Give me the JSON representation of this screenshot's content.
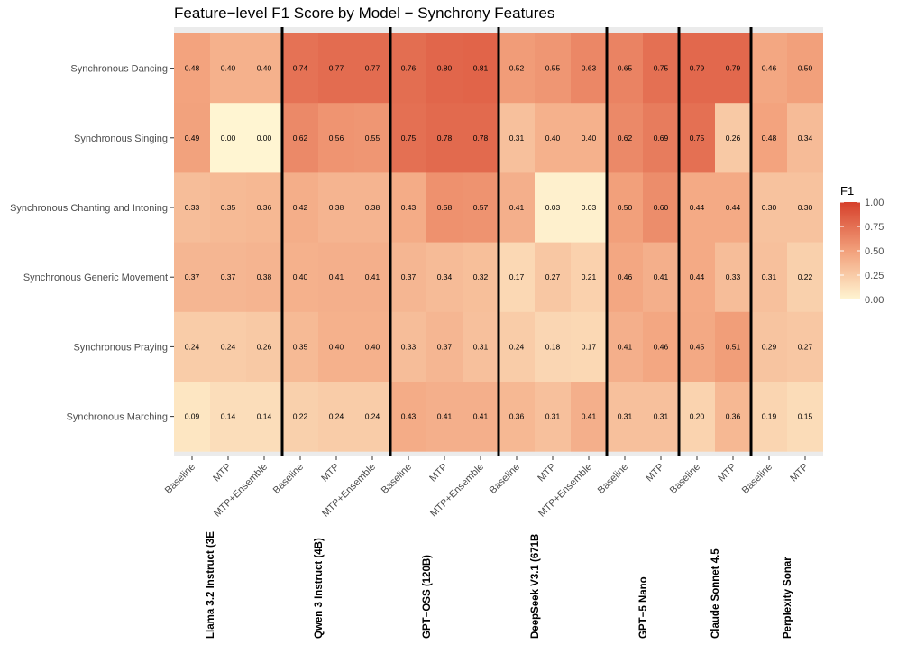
{
  "chart_data": {
    "type": "heatmap",
    "title": "Feature−level F1 Score by Model − Synchrony Features",
    "legend": {
      "title": "F1",
      "ticks": [
        "1.00",
        "0.75",
        "0.50",
        "0.25",
        "0.00"
      ],
      "placement": "right",
      "colors": {
        "low": "#fff5d2",
        "mid": "#f2a07b",
        "high": "#d6402b"
      }
    },
    "rows": [
      "Synchronous Dancing",
      "Synchronous Singing",
      "Synchronous Chanting and Intoning",
      "Synchronous Generic Movement",
      "Synchronous Praying",
      "Synchronous Marching"
    ],
    "models": [
      {
        "name": "Llama 3.2 Instruct (3E",
        "methods": [
          "Baseline",
          "MTP",
          "MTP+Ensemble"
        ]
      },
      {
        "name": "Qwen 3 Instruct (4B)",
        "methods": [
          "Baseline",
          "MTP",
          "MTP+Ensemble"
        ]
      },
      {
        "name": "GPT−OSS (120B)",
        "methods": [
          "Baseline",
          "MTP",
          "MTP+Ensemble"
        ]
      },
      {
        "name": "DeepSeek V3.1 (671B",
        "methods": [
          "Baseline",
          "MTP",
          "MTP+Ensemble"
        ]
      },
      {
        "name": "GPT−5 Nano",
        "methods": [
          "Baseline",
          "MTP"
        ]
      },
      {
        "name": "Claude Sonnet 4.5",
        "methods": [
          "Baseline",
          "MTP"
        ]
      },
      {
        "name": "Perplexity Sonar",
        "methods": [
          "Baseline",
          "MTP"
        ]
      }
    ],
    "values": [
      [
        "0.48",
        "0.40",
        "0.40",
        "0.74",
        "0.77",
        "0.77",
        "0.76",
        "0.80",
        "0.81",
        "0.52",
        "0.55",
        "0.63",
        "0.65",
        "0.75",
        "0.79",
        "0.79",
        "0.46",
        "0.50"
      ],
      [
        "0.49",
        "0.00",
        "0.00",
        "0.62",
        "0.56",
        "0.55",
        "0.75",
        "0.78",
        "0.78",
        "0.31",
        "0.40",
        "0.40",
        "0.62",
        "0.69",
        "0.75",
        "0.26",
        "0.48",
        "0.34"
      ],
      [
        "0.33",
        "0.35",
        "0.36",
        "0.42",
        "0.38",
        "0.38",
        "0.43",
        "0.58",
        "0.57",
        "0.41",
        "0.03",
        "0.03",
        "0.50",
        "0.60",
        "0.44",
        "0.44",
        "0.30",
        "0.30"
      ],
      [
        "0.37",
        "0.37",
        "0.38",
        "0.40",
        "0.41",
        "0.41",
        "0.37",
        "0.34",
        "0.32",
        "0.17",
        "0.27",
        "0.21",
        "0.46",
        "0.41",
        "0.44",
        "0.33",
        "0.31",
        "0.22"
      ],
      [
        "0.24",
        "0.24",
        "0.26",
        "0.35",
        "0.40",
        "0.40",
        "0.33",
        "0.37",
        "0.31",
        "0.24",
        "0.18",
        "0.17",
        "0.41",
        "0.46",
        "0.45",
        "0.51",
        "0.29",
        "0.27"
      ],
      [
        "0.09",
        "0.14",
        "0.14",
        "0.22",
        "0.24",
        "0.24",
        "0.43",
        "0.41",
        "0.41",
        "0.36",
        "0.31",
        "0.41",
        "0.31",
        "0.31",
        "0.20",
        "0.36",
        "0.19",
        "0.15"
      ]
    ]
  }
}
